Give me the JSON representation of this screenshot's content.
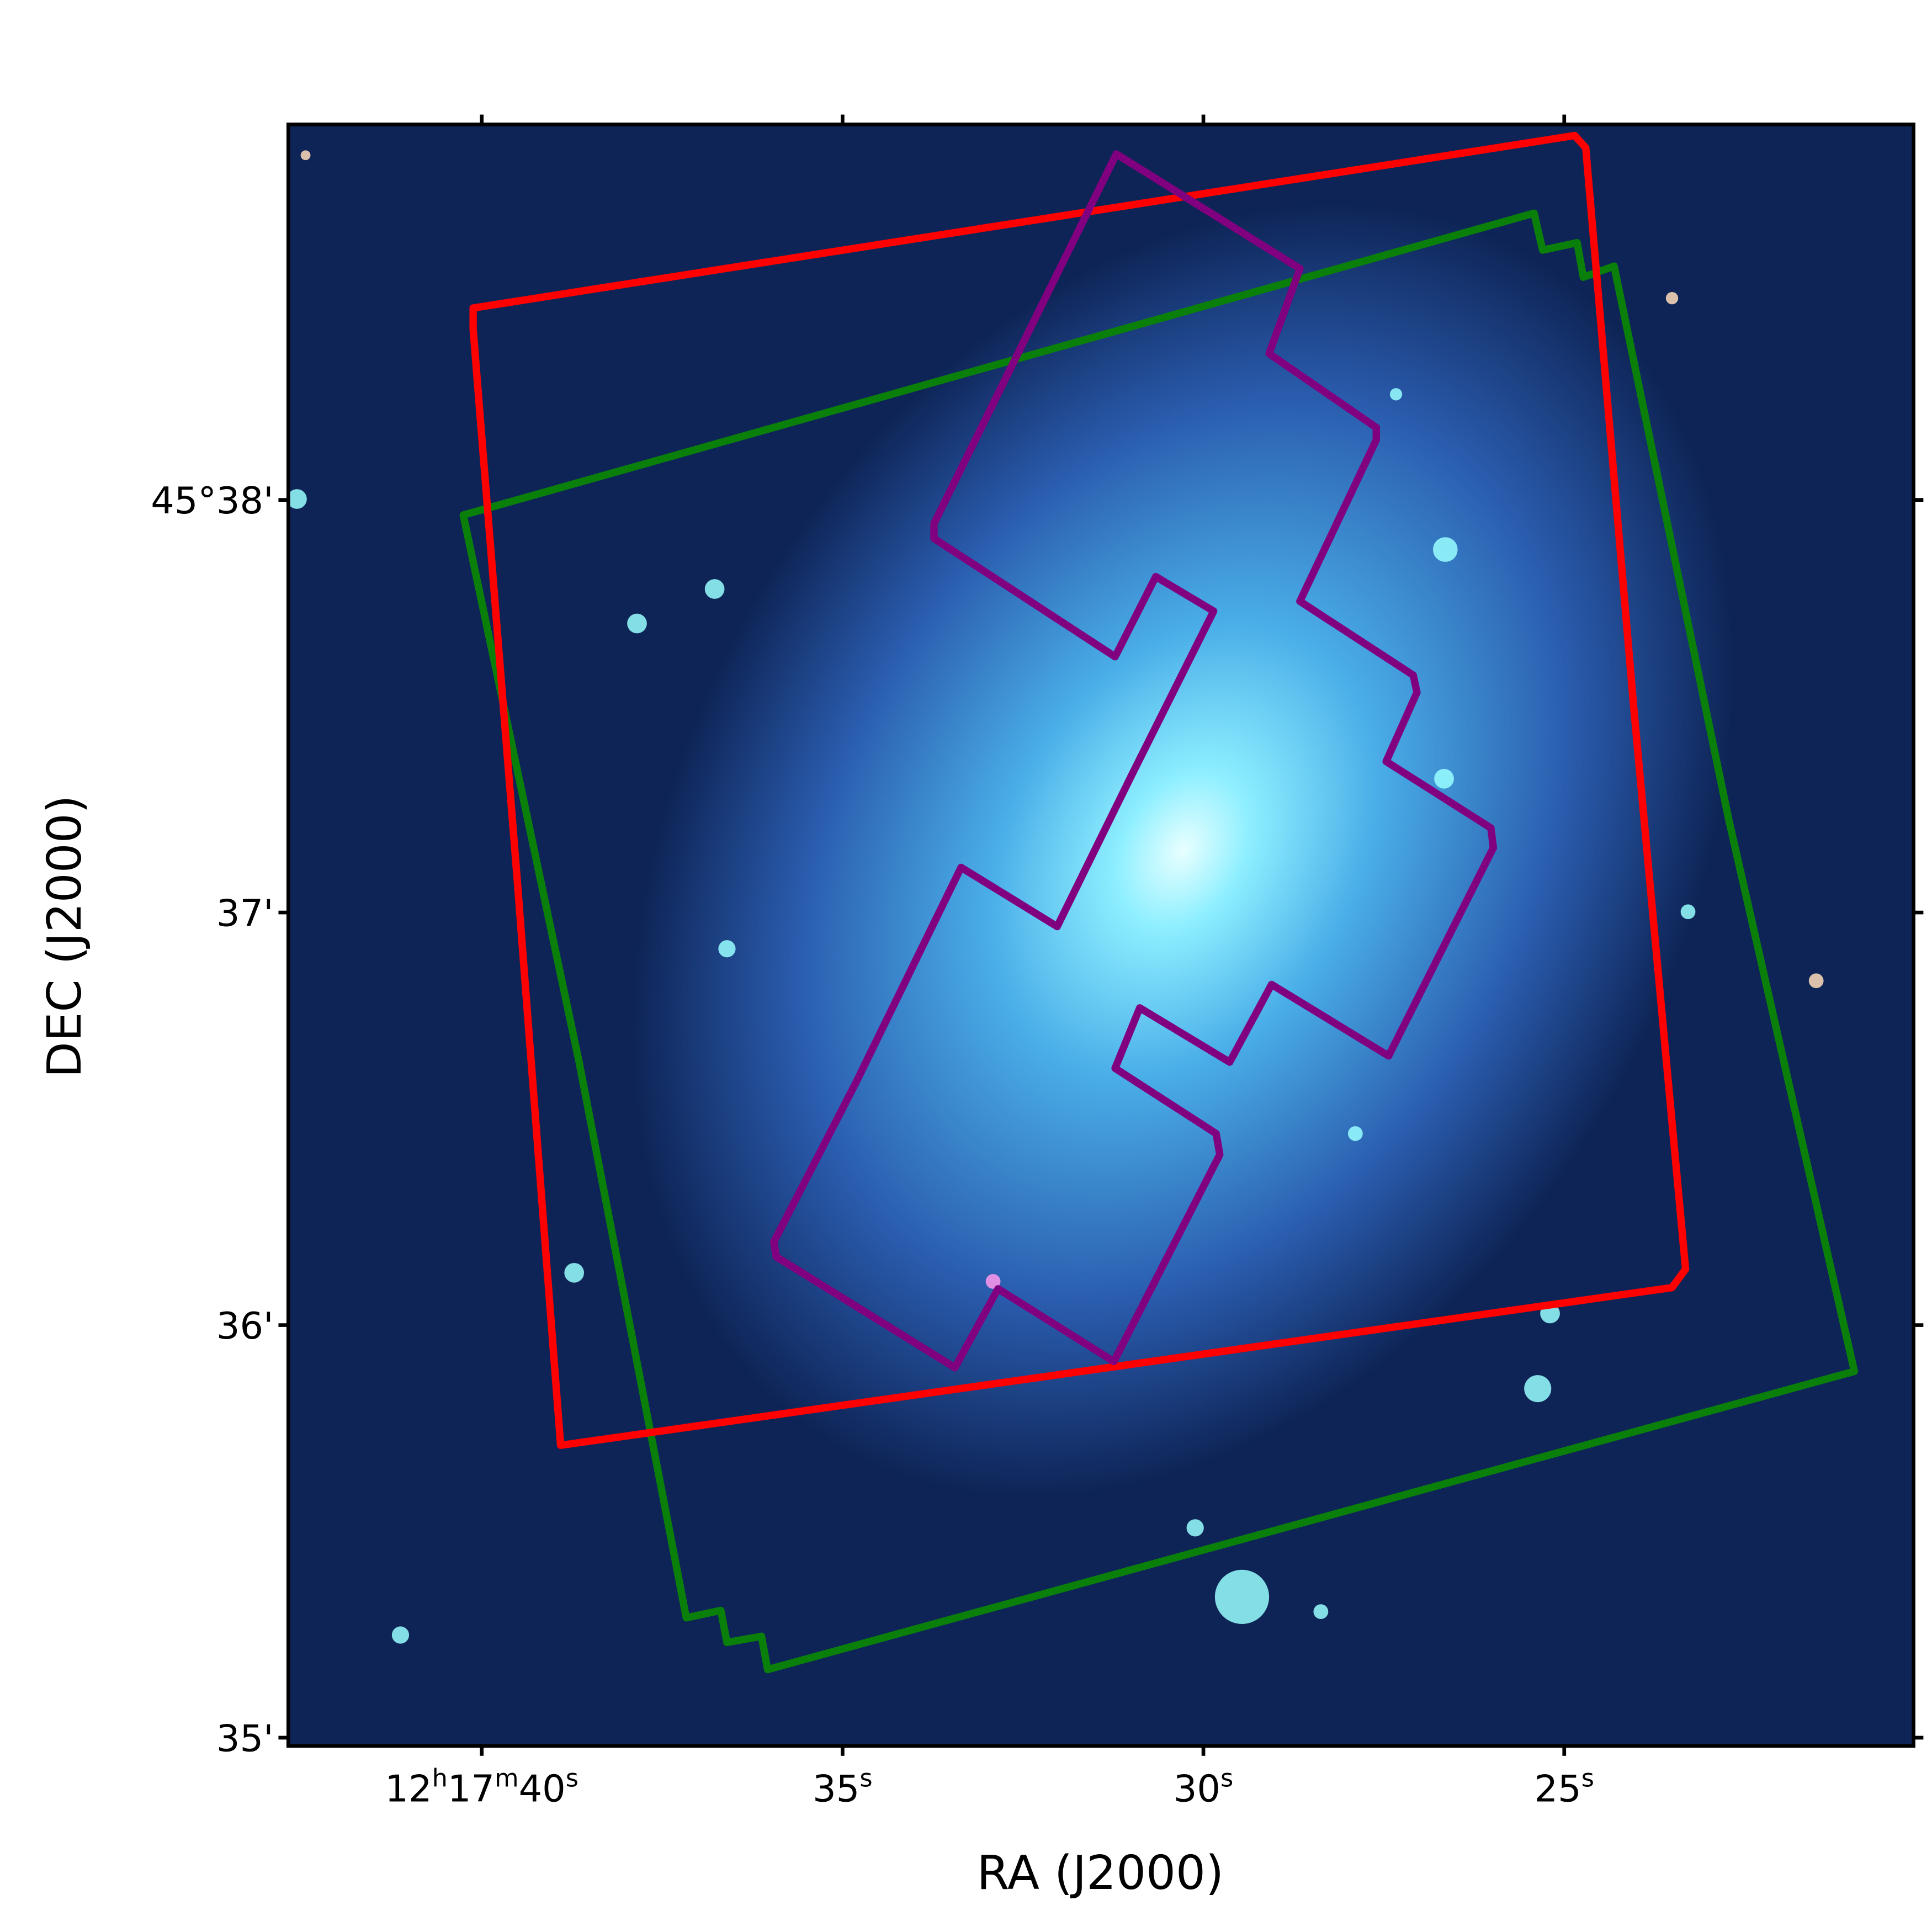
{
  "chart_data": {
    "type": "image",
    "xlabel": "RA (J2000)",
    "ylabel": "DEC (J2000)",
    "xlim": [
      42.68,
      20.16
    ],
    "xticks": [
      {
        "value": 40,
        "label": "12h17m40s"
      },
      {
        "value": 35,
        "label": "35s"
      },
      {
        "value": 30,
        "label": "30s"
      },
      {
        "value": 25,
        "label": "25s"
      }
    ],
    "ylim": [
      34.98,
      38.91
    ],
    "yticks": [
      {
        "value": 35,
        "label": "35'"
      },
      {
        "value": 36,
        "label": "36'"
      },
      {
        "value": 37,
        "label": "37'"
      },
      {
        "value": 38,
        "label": "45°38'"
      }
    ]
  }
}
